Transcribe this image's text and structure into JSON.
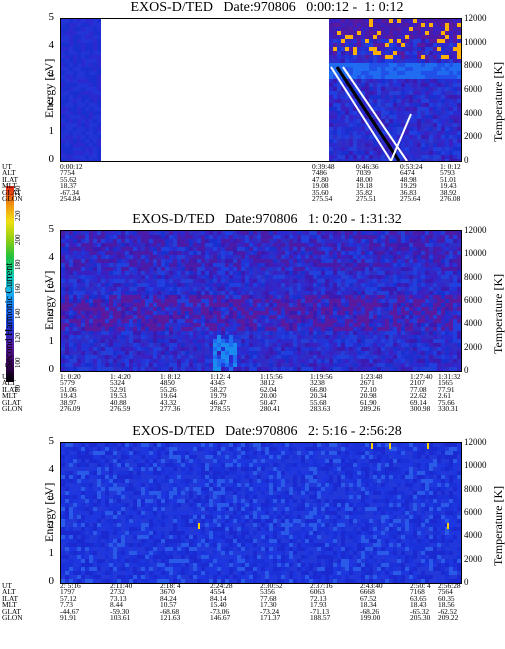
{
  "colorbar": {
    "label": "Second Harmonic Current",
    "ticks": [
      "80",
      "100",
      "120",
      "140",
      "160",
      "180",
      "200",
      "220",
      "240"
    ],
    "colors": [
      "#000000",
      "#3a005a",
      "#5a1aa0",
      "#2233d0",
      "#1f6cf0",
      "#1ab0f0",
      "#10d0b0",
      "#20c040",
      "#90d010",
      "#f0e010",
      "#f09010",
      "#e02010"
    ]
  },
  "panels": [
    {
      "title": "EXOS-D/TED   Date:970806   0:00:12 -  1: 0:12",
      "ylabel": "Energy [eV]",
      "rlabel": "Temperature [K]",
      "yticks": [
        "5",
        "4",
        "3",
        "2",
        "1",
        "0"
      ],
      "rticks": [
        "12000",
        "10000",
        "8000",
        "6000",
        "4000",
        "2000",
        "0"
      ],
      "row_names": [
        "UT",
        "ALT",
        "ILAT",
        "MLT",
        "GLAT",
        "GLON"
      ],
      "columns": [
        {
          "UT": "0:00:12",
          "ALT": "7754",
          "ILAT": "55.62",
          "MLT": "18.37",
          "GLAT": "-67.34",
          "GLON": "254.84"
        },
        {
          "UT": "0:39:48",
          "ALT": "7486",
          "ILAT": "47.80",
          "MLT": "19.08",
          "GLAT": "35.60",
          "GLON": "275.54"
        },
        {
          "UT": "0:46:36",
          "ALT": "7039",
          "ILAT": "48.00",
          "MLT": "19.18",
          "GLAT": "35.82",
          "GLON": "275.51"
        },
        {
          "UT": "0:53:24",
          "ALT": "6474",
          "ILAT": "48.98",
          "MLT": "19.29",
          "GLAT": "36.83",
          "GLON": "275.64"
        },
        {
          "UT": "1: 0:12",
          "ALT": "5793",
          "ILAT": "51.01",
          "MLT": "19.43",
          "GLAT": "38.92",
          "GLON": "276.08"
        }
      ]
    },
    {
      "title": "EXOS-D/TED   Date:970806   1: 0:20 - 1:31:32",
      "ylabel": "Energy [eV]",
      "rlabel": "Temperature [K]",
      "yticks": [
        "5",
        "4",
        "3",
        "2",
        "1",
        "0"
      ],
      "rticks": [
        "12000",
        "10000",
        "8000",
        "6000",
        "4000",
        "2000",
        "0"
      ],
      "row_names": [
        "UT",
        "ALT",
        "ILAT",
        "MLT",
        "GLAT",
        "GLON"
      ],
      "columns": [
        {
          "UT": "1: 0:20",
          "ALT": "5779",
          "ILAT": "51.06",
          "MLT": "19.43",
          "GLAT": "38.97",
          "GLON": "276.09"
        },
        {
          "UT": "1: 4:20",
          "ALT": "5324",
          "ILAT": "52.91",
          "MLT": "19.53",
          "GLAT": "40.88",
          "GLON": "276.59"
        },
        {
          "UT": "1: 8:12",
          "ALT": "4850",
          "ILAT": "55.26",
          "MLT": "19.64",
          "GLAT": "43.32",
          "GLON": "277.36"
        },
        {
          "UT": "1:12: 4",
          "ALT": "4345",
          "ILAT": "58.27",
          "MLT": "19.79",
          "GLAT": "46.47",
          "GLON": "278.55"
        },
        {
          "UT": "1:15:56",
          "ALT": "3812",
          "ILAT": "62.04",
          "MLT": "20.00",
          "GLAT": "50.47",
          "GLON": "280.41"
        },
        {
          "UT": "1:19:56",
          "ALT": "3238",
          "ILAT": "66.80",
          "MLT": "20.34",
          "GLAT": "55.68",
          "GLON": "283.63"
        },
        {
          "UT": "1:23:48",
          "ALT": "2671",
          "ILAT": "72.10",
          "MLT": "20.98",
          "GLAT": "61.90",
          "GLON": "289.26"
        },
        {
          "UT": "1:27:40",
          "ALT": "2107",
          "ILAT": "77.08",
          "MLT": "22.62",
          "GLAT": "69.14",
          "GLON": "300.98"
        },
        {
          "UT": "1:31:32",
          "ALT": "1565",
          "ILAT": "77.91",
          "MLT": "2.61",
          "GLAT": "75.66",
          "GLON": "330.31"
        }
      ]
    },
    {
      "title": "EXOS-D/TED   Date:970806   2: 5:16 - 2:56:28",
      "ylabel": "Energy [eV]",
      "rlabel": "Temperature [K]",
      "yticks": [
        "5",
        "4",
        "3",
        "2",
        "1",
        "0"
      ],
      "rticks": [
        "12000",
        "10000",
        "8000",
        "6000",
        "4000",
        "2000",
        "0"
      ],
      "row_names": [
        "UT",
        "ALT",
        "ILAT",
        "MLT",
        "GLAT",
        "GLON"
      ],
      "columns": [
        {
          "UT": "2: 5:16",
          "ALT": "1797",
          "ILAT": "57.12",
          "MLT": "7.73",
          "GLAT": "-44.67",
          "GLON": "91.91"
        },
        {
          "UT": "2:11:40",
          "ALT": "2732",
          "ILAT": "73.13",
          "MLT": "8.44",
          "GLAT": "-59.30",
          "GLON": "103.61"
        },
        {
          "UT": "2:18: 4",
          "ALT": "3670",
          "ILAT": "84.24",
          "MLT": "10.57",
          "GLAT": "-68.68",
          "GLON": "121.63"
        },
        {
          "UT": "2:24:28",
          "ALT": "4554",
          "ILAT": "84.14",
          "MLT": "15.40",
          "GLAT": "-73.06",
          "GLON": "146.67"
        },
        {
          "UT": "2:30:52",
          "ALT": "5356",
          "ILAT": "77.68",
          "MLT": "17.30",
          "GLAT": "-73.24",
          "GLON": "171.37"
        },
        {
          "UT": "2:37:16",
          "ALT": "6063",
          "ILAT": "72.13",
          "MLT": "17.93",
          "GLAT": "-71.13",
          "GLON": "188.57"
        },
        {
          "UT": "2:43:40",
          "ALT": "6668",
          "ILAT": "67.52",
          "MLT": "18.34",
          "GLAT": "-68.26",
          "GLON": "199.00"
        },
        {
          "UT": "2:50: 4",
          "ALT": "7168",
          "ILAT": "63.65",
          "MLT": "18.43",
          "GLAT": "-65.32",
          "GLON": "205.30"
        },
        {
          "UT": "2:56:28",
          "ALT": "7564",
          "ILAT": "60.35",
          "MLT": "18.56",
          "GLAT": "-62.52",
          "GLON": "209.22"
        }
      ]
    }
  ],
  "chart_data": [
    {
      "type": "heatmap",
      "title": "EXOS-D/TED   Date:970806   0:00:12 -  1: 0:12",
      "ylabel": "Energy [eV]",
      "y2label": "Temperature [K]",
      "ylim": [
        0,
        5
      ],
      "y2lim": [
        0,
        12000
      ],
      "x_tick_labels": [
        "0:00:12",
        "0:39:48",
        "0:46:36",
        "0:53:24",
        "1: 0:12"
      ],
      "colorbar": {
        "label": "Second Harmonic Current",
        "range": [
          80,
          240
        ]
      }
    },
    {
      "type": "heatmap",
      "title": "EXOS-D/TED   Date:970806   1: 0:20 - 1:31:32",
      "ylabel": "Energy [eV]",
      "y2label": "Temperature [K]",
      "ylim": [
        0,
        5
      ],
      "y2lim": [
        0,
        12000
      ],
      "x_tick_labels": [
        "1: 0:20",
        "1: 4:20",
        "1: 8:12",
        "1:12: 4",
        "1:15:56",
        "1:19:56",
        "1:23:48",
        "1:27:40",
        "1:31:32"
      ],
      "colorbar": {
        "label": "Second Harmonic Current",
        "range": [
          80,
          240
        ]
      }
    },
    {
      "type": "heatmap",
      "title": "EXOS-D/TED   Date:970806   2: 5:16 - 2:56:28",
      "ylabel": "Energy [eV]",
      "y2label": "Temperature [K]",
      "ylim": [
        0,
        5
      ],
      "y2lim": [
        0,
        12000
      ],
      "x_tick_labels": [
        "2: 5:16",
        "2:11:40",
        "2:18: 4",
        "2:24:28",
        "2:30:52",
        "2:37:16",
        "2:43:40",
        "2:50: 4",
        "2:56:28"
      ],
      "colorbar": {
        "label": "Second Harmonic Current",
        "range": [
          80,
          240
        ]
      }
    }
  ]
}
